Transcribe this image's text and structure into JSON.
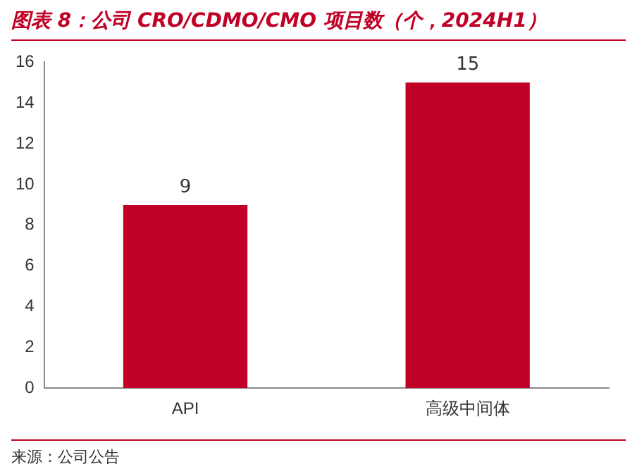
{
  "chart_data": {
    "type": "bar",
    "title": "图表 8：公司 CRO/CDMO/CMO 项目数（个，2024H1）",
    "categories": [
      "API",
      "高级中间体"
    ],
    "values": [
      9,
      15
    ],
    "color": "#c00026",
    "ylim": [
      0,
      16
    ],
    "yticks": [
      0,
      2,
      4,
      6,
      8,
      10,
      12,
      14,
      16
    ],
    "grid": false,
    "legend": false,
    "data_labels": true,
    "annotations": [
      "来源：公司公告"
    ]
  }
}
